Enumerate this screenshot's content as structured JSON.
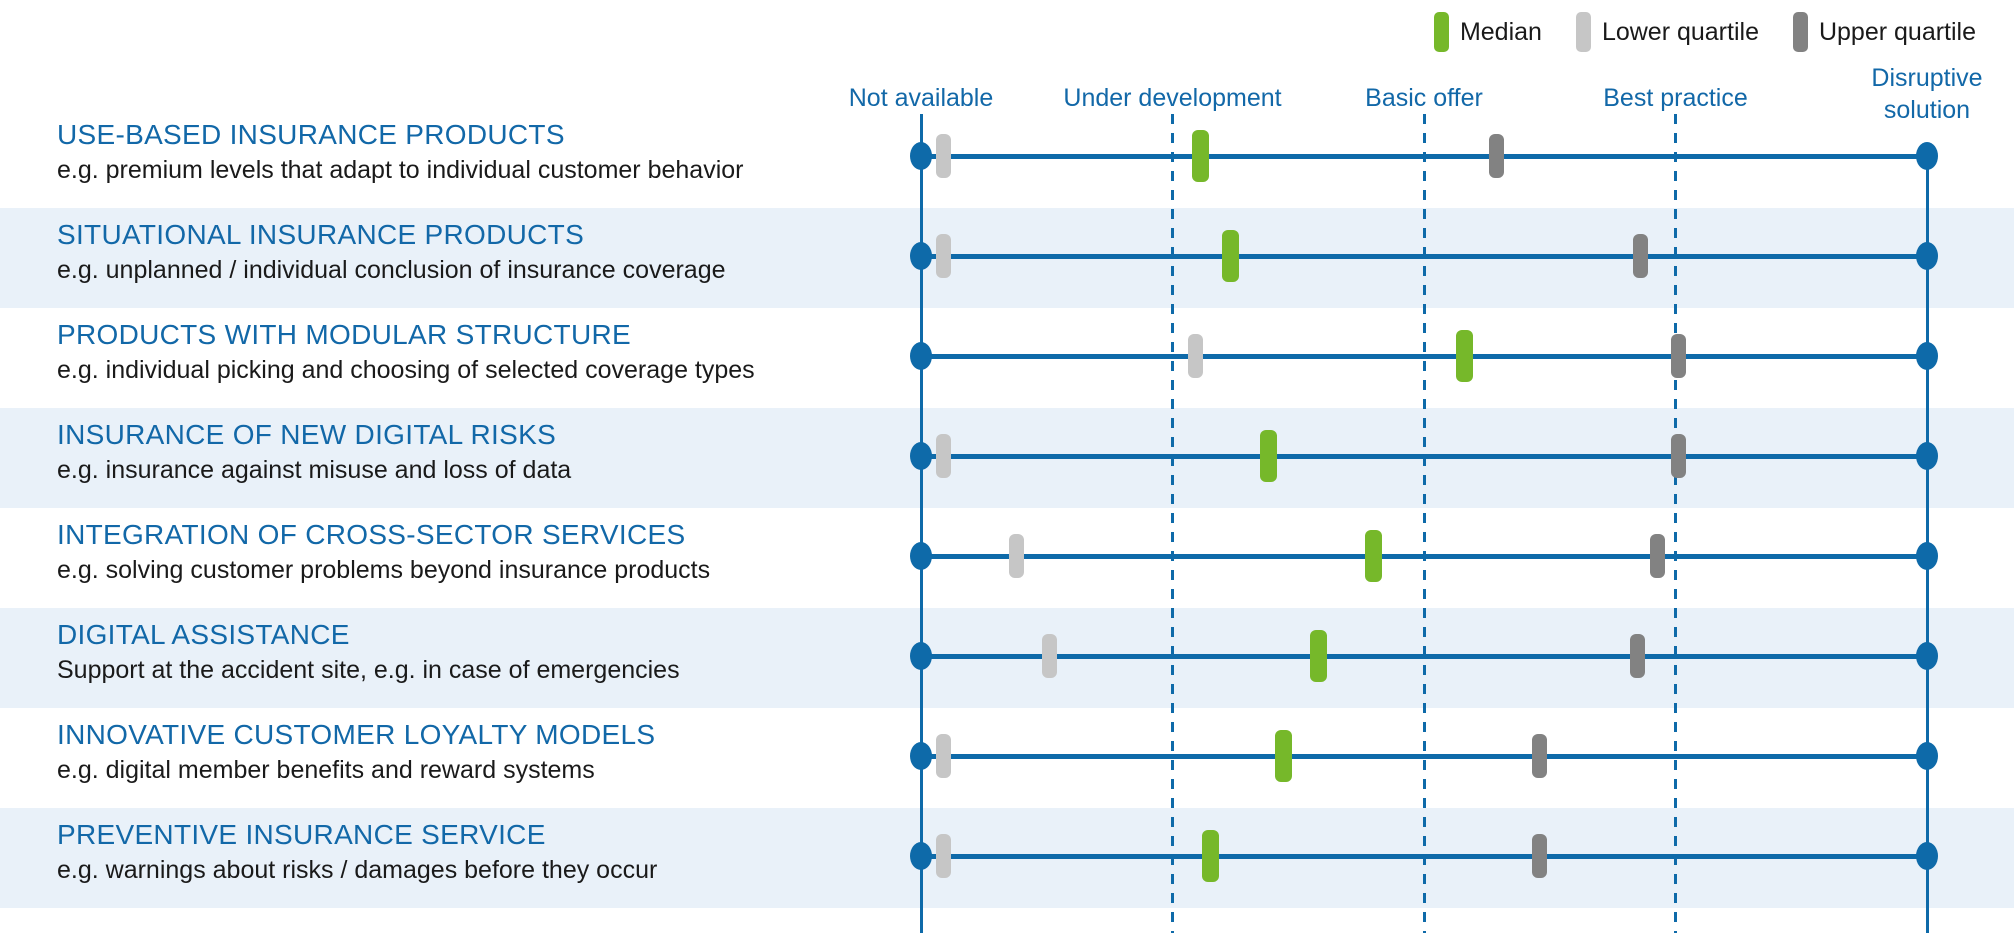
{
  "colors": {
    "axis_blue": "#0e6aa9",
    "title_blue": "#1268a8",
    "band_blue": "#e9f1f9",
    "text_black": "#1a1a1a",
    "median_green": "#76b82a",
    "lower_quartile_gray": "#c6c6c6",
    "upper_quartile_gray": "#828282"
  },
  "chart_data": {
    "type": "scatter",
    "description": "Maturity assessment dot-range chart: median, lower and upper quartile markers on a horizontal maturity scale for eight insurance product/service categories.",
    "scale_labels": [
      "Not available",
      "Under development",
      "Basic offer",
      "Best practice",
      "Disruptive solution"
    ],
    "scale_range": [
      0,
      4
    ],
    "grid": "vertical-dashed",
    "legend_position": "top-right",
    "categories": [
      {
        "title": "USE-BASED INSURANCE PRODUCTS",
        "subtitle": "e.g. premium levels that adapt to individual customer behavior"
      },
      {
        "title": "SITUATIONAL INSURANCE PRODUCTS",
        "subtitle": "e.g. unplanned / individual conclusion of insurance coverage"
      },
      {
        "title": "PRODUCTS WITH MODULAR STRUCTURE",
        "subtitle": "e.g. individual picking and choosing of selected coverage types"
      },
      {
        "title": "INSURANCE OF NEW DIGITAL RISKS",
        "subtitle": "e.g. insurance against misuse and loss of data"
      },
      {
        "title": "INTEGRATION OF CROSS-SECTOR SERVICES",
        "subtitle": "e.g. solving customer problems beyond insurance products"
      },
      {
        "title": "DIGITAL ASSISTANCE",
        "subtitle": "Support at the accident site, e.g. in case of emergencies"
      },
      {
        "title": "INNOVATIVE CUSTOMER LOYALTY MODELS",
        "subtitle": "e.g. digital member benefits and reward systems"
      },
      {
        "title": "PREVENTIVE INSURANCE SERVICE",
        "subtitle": "e.g. warnings about risks / damages before they occur"
      }
    ],
    "series": [
      {
        "name": "Median",
        "role": "median",
        "color": "#76b82a",
        "values": [
          1.11,
          1.23,
          2.16,
          1.38,
          1.8,
          1.58,
          1.44,
          1.15
        ]
      },
      {
        "name": "Lower quartile",
        "role": "lower",
        "color": "#c6c6c6",
        "values": [
          0.09,
          0.09,
          1.09,
          0.09,
          0.38,
          0.51,
          0.09,
          0.09
        ]
      },
      {
        "name": "Upper quartile",
        "role": "upper",
        "color": "#828282",
        "values": [
          2.29,
          2.86,
          3.01,
          3.01,
          2.93,
          2.85,
          2.46,
          2.46
        ]
      }
    ]
  }
}
